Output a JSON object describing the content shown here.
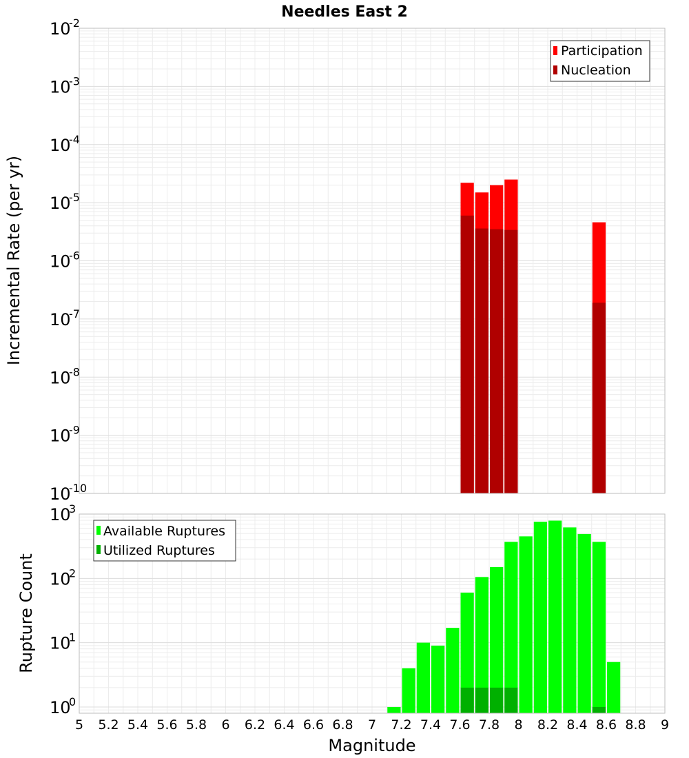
{
  "title": "Needles East 2",
  "xlabel": "Magnitude",
  "x_ticks": [
    "5",
    "5.2",
    "5.4",
    "5.6",
    "5.8",
    "6",
    "6.2",
    "6.4",
    "6.6",
    "6.8",
    "7",
    "7.2",
    "7.4",
    "7.6",
    "7.8",
    "8",
    "8.2",
    "8.4",
    "8.6",
    "8.8",
    "9"
  ],
  "colors": {
    "participation": "#ff0000",
    "nucleation": "#b00000",
    "available": "#00ff00",
    "utilized": "#00b000",
    "grid": "#ececec",
    "frame": "#bdbdbd"
  },
  "chart_data": [
    {
      "type": "bar",
      "title": "Needles East 2",
      "xlabel": "Magnitude",
      "ylabel": "Incremental Rate (per yr)",
      "yscale": "log",
      "xlim": [
        5,
        9
      ],
      "ylim": [
        1e-10,
        0.01
      ],
      "y_ticks": [
        {
          "base": "10",
          "exp": "-2"
        },
        {
          "base": "10",
          "exp": "-3"
        },
        {
          "base": "10",
          "exp": "-4"
        },
        {
          "base": "10",
          "exp": "-5"
        },
        {
          "base": "10",
          "exp": "-6"
        },
        {
          "base": "10",
          "exp": "-7"
        },
        {
          "base": "10",
          "exp": "-8"
        },
        {
          "base": "10",
          "exp": "-9"
        },
        {
          "base": "10",
          "exp": "-10"
        }
      ],
      "legend_position": "top-right",
      "bin_width": 0.1,
      "series": [
        {
          "name": "Participation",
          "x": [
            7.65,
            7.75,
            7.85,
            7.95,
            8.55
          ],
          "values": [
            2.2e-05,
            1.5e-05,
            2e-05,
            2.5e-05,
            4.6e-06
          ]
        },
        {
          "name": "Nucleation",
          "x": [
            7.65,
            7.75,
            7.85,
            7.95,
            8.55
          ],
          "values": [
            6e-06,
            3.6e-06,
            3.5e-06,
            3.4e-06,
            1.9e-07
          ]
        }
      ]
    },
    {
      "type": "bar",
      "xlabel": "Magnitude",
      "ylabel": "Rupture Count",
      "yscale": "log",
      "xlim": [
        5,
        9
      ],
      "ylim": [
        0.8,
        1000
      ],
      "y_ticks": [
        {
          "base": "10",
          "exp": "3"
        },
        {
          "base": "10",
          "exp": "2"
        },
        {
          "base": "10",
          "exp": "1"
        },
        {
          "base": "10",
          "exp": "0"
        }
      ],
      "legend_position": "top-left",
      "bin_width": 0.1,
      "series": [
        {
          "name": "Available Ruptures",
          "x": [
            7.15,
            7.25,
            7.35,
            7.45,
            7.55,
            7.65,
            7.75,
            7.85,
            7.95,
            8.05,
            8.15,
            8.25,
            8.35,
            8.45,
            8.55,
            8.65
          ],
          "values": [
            1,
            4,
            10,
            9,
            17,
            60,
            105,
            150,
            370,
            450,
            760,
            790,
            620,
            490,
            370,
            5
          ]
        },
        {
          "name": "Utilized Ruptures",
          "x": [
            7.65,
            7.75,
            7.85,
            7.95,
            8.55
          ],
          "values": [
            2,
            2,
            2,
            2,
            1
          ]
        }
      ]
    }
  ]
}
